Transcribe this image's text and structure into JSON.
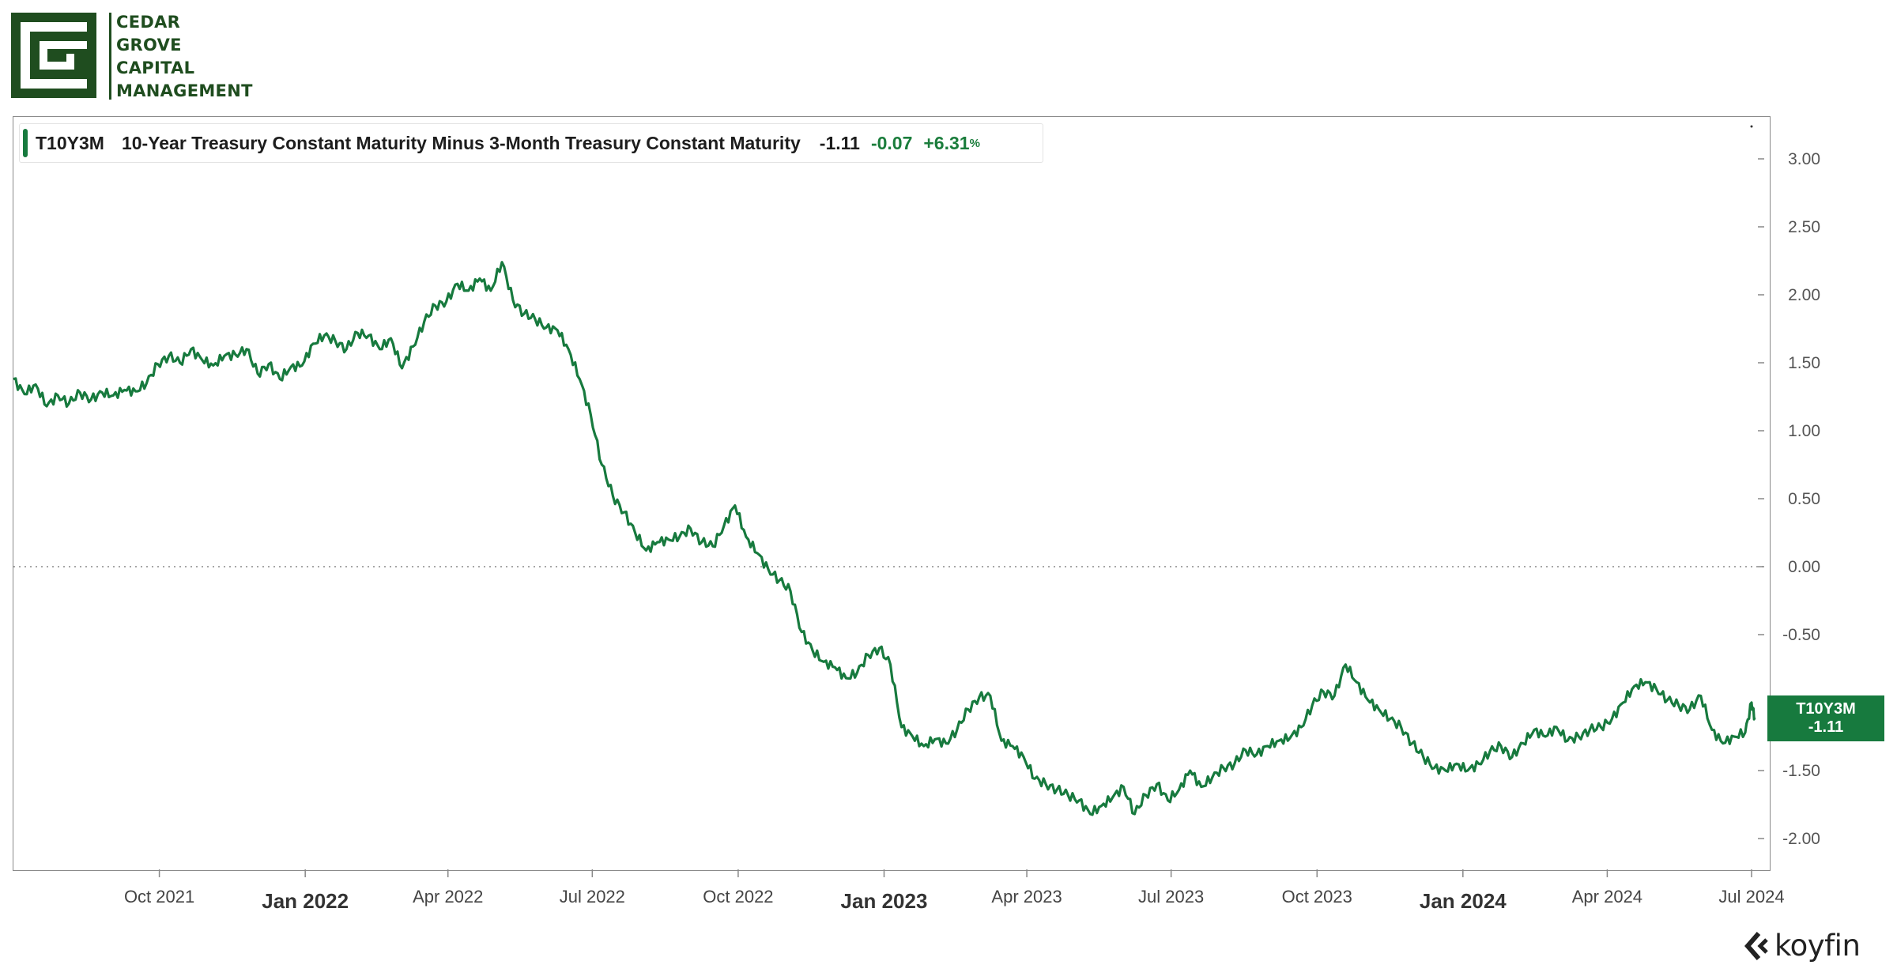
{
  "brand": {
    "name_lines": [
      "CEDAR",
      "GROVE",
      "CAPITAL",
      "MANAGEMENT"
    ]
  },
  "legend": {
    "ticker": "T10Y3M",
    "title": "10-Year Treasury Constant Maturity Minus 3-Month Treasury Constant Maturity",
    "last_value": "-1.11",
    "change": "-0.07",
    "change_pct": "+6.31",
    "pct_sign": "%"
  },
  "price_tag": {
    "ticker": "T10Y3M",
    "value": "-1.11"
  },
  "watermark": "koyfin",
  "colors": {
    "line": "#177a3e",
    "brand": "#1f4d1f",
    "positive": "#1b7d3c"
  },
  "chart_data": {
    "type": "line",
    "title": "10-Year Treasury Constant Maturity Minus 3-Month Treasury Constant Maturity",
    "series": [
      {
        "name": "T10Y3M",
        "points": [
          [
            "2021-07-01",
            1.38
          ],
          [
            "2021-07-08",
            1.27
          ],
          [
            "2021-07-15",
            1.34
          ],
          [
            "2021-07-22",
            1.18
          ],
          [
            "2021-07-29",
            1.26
          ],
          [
            "2021-08-05",
            1.2
          ],
          [
            "2021-08-12",
            1.28
          ],
          [
            "2021-08-19",
            1.23
          ],
          [
            "2021-08-26",
            1.28
          ],
          [
            "2021-09-02",
            1.26
          ],
          [
            "2021-09-09",
            1.3
          ],
          [
            "2021-09-16",
            1.29
          ],
          [
            "2021-09-23",
            1.35
          ],
          [
            "2021-09-30",
            1.49
          ],
          [
            "2021-10-07",
            1.55
          ],
          [
            "2021-10-14",
            1.5
          ],
          [
            "2021-10-21",
            1.6
          ],
          [
            "2021-10-28",
            1.52
          ],
          [
            "2021-11-04",
            1.48
          ],
          [
            "2021-11-11",
            1.55
          ],
          [
            "2021-11-18",
            1.56
          ],
          [
            "2021-11-25",
            1.6
          ],
          [
            "2021-12-02",
            1.42
          ],
          [
            "2021-12-09",
            1.49
          ],
          [
            "2021-12-16",
            1.38
          ],
          [
            "2021-12-23",
            1.47
          ],
          [
            "2021-12-30",
            1.48
          ],
          [
            "2022-01-06",
            1.64
          ],
          [
            "2022-01-13",
            1.7
          ],
          [
            "2022-01-20",
            1.66
          ],
          [
            "2022-01-27",
            1.6
          ],
          [
            "2022-02-03",
            1.72
          ],
          [
            "2022-02-10",
            1.7
          ],
          [
            "2022-02-17",
            1.6
          ],
          [
            "2022-02-24",
            1.68
          ],
          [
            "2022-03-03",
            1.46
          ],
          [
            "2022-03-10",
            1.62
          ],
          [
            "2022-03-17",
            1.8
          ],
          [
            "2022-03-24",
            1.92
          ],
          [
            "2022-03-31",
            1.95
          ],
          [
            "2022-04-07",
            2.08
          ],
          [
            "2022-04-14",
            2.03
          ],
          [
            "2022-04-21",
            2.12
          ],
          [
            "2022-04-28",
            2.03
          ],
          [
            "2022-05-05",
            2.24
          ],
          [
            "2022-05-12",
            1.96
          ],
          [
            "2022-05-19",
            1.86
          ],
          [
            "2022-05-26",
            1.82
          ],
          [
            "2022-06-02",
            1.76
          ],
          [
            "2022-06-09",
            1.74
          ],
          [
            "2022-06-16",
            1.6
          ],
          [
            "2022-06-23",
            1.38
          ],
          [
            "2022-06-30",
            1.12
          ],
          [
            "2022-07-07",
            0.75
          ],
          [
            "2022-07-14",
            0.52
          ],
          [
            "2022-07-21",
            0.4
          ],
          [
            "2022-07-28",
            0.25
          ],
          [
            "2022-08-04",
            0.12
          ],
          [
            "2022-08-11",
            0.18
          ],
          [
            "2022-08-18",
            0.2
          ],
          [
            "2022-08-25",
            0.22
          ],
          [
            "2022-09-01",
            0.28
          ],
          [
            "2022-09-08",
            0.18
          ],
          [
            "2022-09-15",
            0.15
          ],
          [
            "2022-09-22",
            0.3
          ],
          [
            "2022-09-29",
            0.45
          ],
          [
            "2022-10-06",
            0.22
          ],
          [
            "2022-10-13",
            0.1
          ],
          [
            "2022-10-20",
            -0.02
          ],
          [
            "2022-10-27",
            -0.1
          ],
          [
            "2022-11-03",
            -0.18
          ],
          [
            "2022-11-10",
            -0.48
          ],
          [
            "2022-11-17",
            -0.62
          ],
          [
            "2022-11-24",
            -0.7
          ],
          [
            "2022-12-01",
            -0.74
          ],
          [
            "2022-12-08",
            -0.82
          ],
          [
            "2022-12-15",
            -0.78
          ],
          [
            "2022-12-22",
            -0.65
          ],
          [
            "2022-12-29",
            -0.6
          ],
          [
            "2023-01-05",
            -0.72
          ],
          [
            "2023-01-12",
            -1.18
          ],
          [
            "2023-01-19",
            -1.25
          ],
          [
            "2023-01-26",
            -1.32
          ],
          [
            "2023-02-02",
            -1.27
          ],
          [
            "2023-02-09",
            -1.3
          ],
          [
            "2023-02-16",
            -1.2
          ],
          [
            "2023-02-23",
            -1.05
          ],
          [
            "2023-03-02",
            -0.96
          ],
          [
            "2023-03-09",
            -0.95
          ],
          [
            "2023-03-16",
            -1.28
          ],
          [
            "2023-03-23",
            -1.32
          ],
          [
            "2023-03-30",
            -1.4
          ],
          [
            "2023-04-06",
            -1.56
          ],
          [
            "2023-04-13",
            -1.6
          ],
          [
            "2023-04-20",
            -1.64
          ],
          [
            "2023-04-27",
            -1.68
          ],
          [
            "2023-05-04",
            -1.72
          ],
          [
            "2023-05-11",
            -1.82
          ],
          [
            "2023-05-18",
            -1.76
          ],
          [
            "2023-05-25",
            -1.7
          ],
          [
            "2023-06-01",
            -1.62
          ],
          [
            "2023-06-08",
            -1.82
          ],
          [
            "2023-06-15",
            -1.68
          ],
          [
            "2023-06-22",
            -1.6
          ],
          [
            "2023-06-29",
            -1.72
          ],
          [
            "2023-07-06",
            -1.64
          ],
          [
            "2023-07-13",
            -1.5
          ],
          [
            "2023-07-20",
            -1.62
          ],
          [
            "2023-07-27",
            -1.55
          ],
          [
            "2023-08-03",
            -1.48
          ],
          [
            "2023-08-10",
            -1.45
          ],
          [
            "2023-08-17",
            -1.35
          ],
          [
            "2023-08-24",
            -1.38
          ],
          [
            "2023-08-31",
            -1.32
          ],
          [
            "2023-09-07",
            -1.28
          ],
          [
            "2023-09-14",
            -1.26
          ],
          [
            "2023-09-21",
            -1.18
          ],
          [
            "2023-09-28",
            -1.02
          ],
          [
            "2023-10-05",
            -0.92
          ],
          [
            "2023-10-12",
            -0.95
          ],
          [
            "2023-10-19",
            -0.72
          ],
          [
            "2023-10-26",
            -0.85
          ],
          [
            "2023-11-02",
            -0.98
          ],
          [
            "2023-11-09",
            -1.05
          ],
          [
            "2023-11-16",
            -1.12
          ],
          [
            "2023-11-23",
            -1.18
          ],
          [
            "2023-11-30",
            -1.3
          ],
          [
            "2023-12-07",
            -1.4
          ],
          [
            "2023-12-14",
            -1.48
          ],
          [
            "2023-12-21",
            -1.5
          ],
          [
            "2023-12-28",
            -1.45
          ],
          [
            "2024-01-04",
            -1.5
          ],
          [
            "2024-01-11",
            -1.45
          ],
          [
            "2024-01-18",
            -1.36
          ],
          [
            "2024-01-25",
            -1.32
          ],
          [
            "2024-02-01",
            -1.4
          ],
          [
            "2024-02-08",
            -1.3
          ],
          [
            "2024-02-15",
            -1.2
          ],
          [
            "2024-02-22",
            -1.25
          ],
          [
            "2024-02-29",
            -1.18
          ],
          [
            "2024-03-07",
            -1.28
          ],
          [
            "2024-03-14",
            -1.25
          ],
          [
            "2024-03-21",
            -1.2
          ],
          [
            "2024-03-28",
            -1.18
          ],
          [
            "2024-04-04",
            -1.12
          ],
          [
            "2024-04-11",
            -1.0
          ],
          [
            "2024-04-18",
            -0.88
          ],
          [
            "2024-04-25",
            -0.85
          ],
          [
            "2024-05-02",
            -0.9
          ],
          [
            "2024-05-09",
            -0.98
          ],
          [
            "2024-05-16",
            -1.02
          ],
          [
            "2024-05-23",
            -1.05
          ],
          [
            "2024-05-30",
            -0.95
          ],
          [
            "2024-06-06",
            -1.2
          ],
          [
            "2024-06-13",
            -1.3
          ],
          [
            "2024-06-20",
            -1.25
          ],
          [
            "2024-06-27",
            -1.22
          ],
          [
            "2024-07-01",
            -1.0
          ],
          [
            "2024-07-03",
            -1.11
          ]
        ]
      }
    ],
    "x_ticks": [
      {
        "date": "2021-10-01",
        "label": "Oct 2021",
        "major": false
      },
      {
        "date": "2022-01-01",
        "label": "Jan 2022",
        "major": true
      },
      {
        "date": "2022-04-01",
        "label": "Apr 2022",
        "major": false
      },
      {
        "date": "2022-07-01",
        "label": "Jul 2022",
        "major": false
      },
      {
        "date": "2022-10-01",
        "label": "Oct 2022",
        "major": false
      },
      {
        "date": "2023-01-01",
        "label": "Jan 2023",
        "major": true
      },
      {
        "date": "2023-04-01",
        "label": "Apr 2023",
        "major": false
      },
      {
        "date": "2023-07-01",
        "label": "Jul 2023",
        "major": false
      },
      {
        "date": "2023-10-01",
        "label": "Oct 2023",
        "major": false
      },
      {
        "date": "2024-01-01",
        "label": "Jan 2024",
        "major": true
      },
      {
        "date": "2024-04-01",
        "label": "Apr 2024",
        "major": false
      },
      {
        "date": "2024-07-01",
        "label": "Jul 2024",
        "major": false
      }
    ],
    "y_ticks": [
      {
        "value": 3.0,
        "label": "3.00"
      },
      {
        "value": 2.5,
        "label": "2.50"
      },
      {
        "value": 2.0,
        "label": "2.00"
      },
      {
        "value": 1.5,
        "label": "1.50"
      },
      {
        "value": 1.0,
        "label": "1.00"
      },
      {
        "value": 0.5,
        "label": "0.50"
      },
      {
        "value": 0.0,
        "label": "0.00"
      },
      {
        "value": -0.5,
        "label": "-0.50"
      },
      {
        "value": -1.5,
        "label": "-1.50"
      },
      {
        "value": -2.0,
        "label": "-2.00"
      }
    ],
    "xlim": [
      "2021-07-01",
      "2024-07-04"
    ],
    "ylim": [
      -2.2,
      3.3
    ],
    "zero_line": "dotted",
    "grid": false,
    "y_axis_side": "right"
  }
}
